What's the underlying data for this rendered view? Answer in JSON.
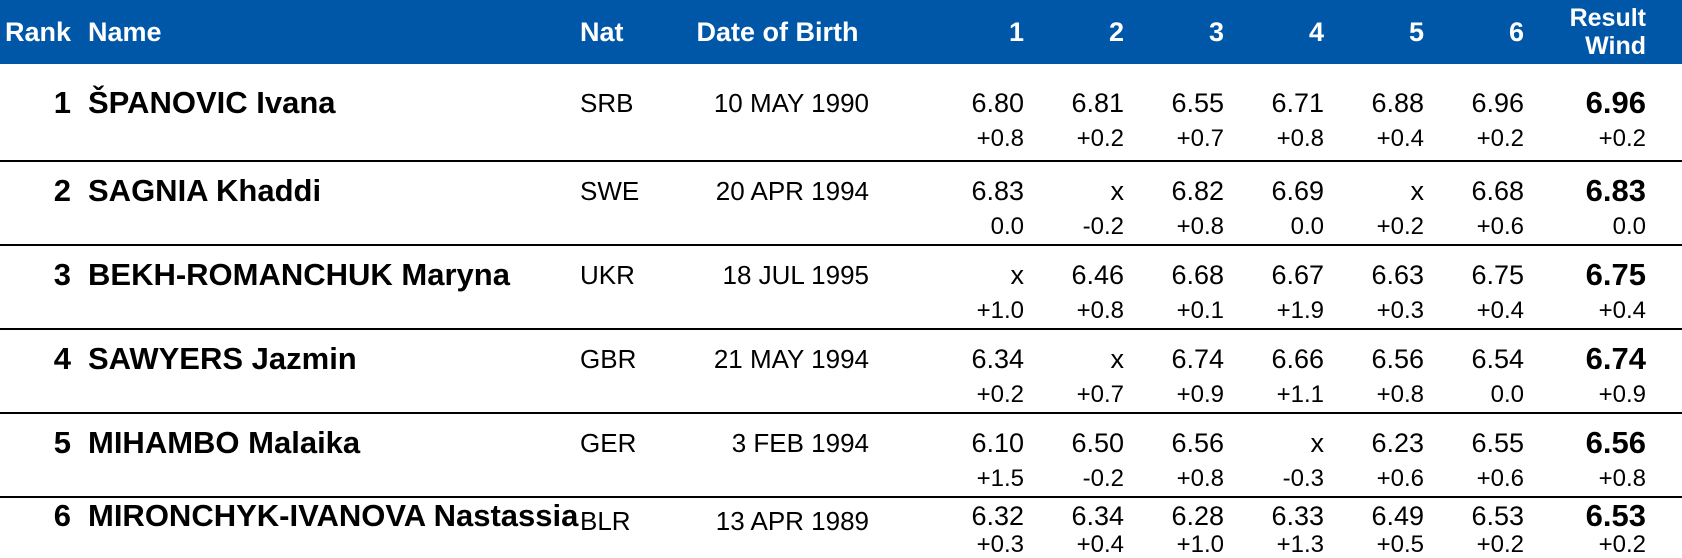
{
  "colors": {
    "header_bg": "#0057A8",
    "header_text": "#FFFFFF",
    "body_text": "#000000",
    "row_divider": "#000000"
  },
  "table": {
    "headers": {
      "rank": "Rank",
      "name": "Name",
      "nat": "Nat",
      "dob": "Date of Birth",
      "attempts": [
        "1",
        "2",
        "3",
        "4",
        "5",
        "6"
      ],
      "result_line1": "Result",
      "result_line2": "Wind"
    },
    "rows": [
      {
        "rank": "1",
        "name": "ŠPANOVIC Ivana",
        "nat": "SRB",
        "dob": "10 MAY 1990",
        "marks": [
          "6.80",
          "6.81",
          "6.55",
          "6.71",
          "6.88",
          "6.96"
        ],
        "winds": [
          "+0.8",
          "+0.2",
          "+0.7",
          "+0.8",
          "+0.4",
          "+0.2"
        ],
        "result": "6.96",
        "result_wind": "+0.2"
      },
      {
        "rank": "2",
        "name": "SAGNIA Khaddi",
        "nat": "SWE",
        "dob": "20 APR 1994",
        "marks": [
          "6.83",
          "x",
          "6.82",
          "6.69",
          "x",
          "6.68"
        ],
        "winds": [
          "0.0",
          "-0.2",
          "+0.8",
          "0.0",
          "+0.2",
          "+0.6"
        ],
        "result": "6.83",
        "result_wind": "0.0"
      },
      {
        "rank": "3",
        "name": "BEKH-ROMANCHUK Maryna",
        "nat": "UKR",
        "dob": "18 JUL 1995",
        "marks": [
          "x",
          "6.46",
          "6.68",
          "6.67",
          "6.63",
          "6.75"
        ],
        "winds": [
          "+1.0",
          "+0.8",
          "+0.1",
          "+1.9",
          "+0.3",
          "+0.4"
        ],
        "result": "6.75",
        "result_wind": "+0.4"
      },
      {
        "rank": "4",
        "name": "SAWYERS Jazmin",
        "nat": "GBR",
        "dob": "21 MAY 1994",
        "marks": [
          "6.34",
          "x",
          "6.74",
          "6.66",
          "6.56",
          "6.54"
        ],
        "winds": [
          "+0.2",
          "+0.7",
          "+0.9",
          "+1.1",
          "+0.8",
          "0.0"
        ],
        "result": "6.74",
        "result_wind": "+0.9"
      },
      {
        "rank": "5",
        "name": "MIHAMBO Malaika",
        "nat": "GER",
        "dob": "3 FEB 1994",
        "marks": [
          "6.10",
          "6.50",
          "6.56",
          "x",
          "6.23",
          "6.55"
        ],
        "winds": [
          "+1.5",
          "-0.2",
          "+0.8",
          "-0.3",
          "+0.6",
          "+0.6"
        ],
        "result": "6.56",
        "result_wind": "+0.8"
      },
      {
        "rank": "6",
        "name": "MIRONCHYK-IVANOVA Nastassia",
        "nat": "BLR",
        "dob": "13 APR 1989",
        "marks": [
          "6.32",
          "6.34",
          "6.28",
          "6.33",
          "6.49",
          "6.53"
        ],
        "winds": [
          "+0.3",
          "+0.4",
          "+1.0",
          "+1.3",
          "+0.5",
          "+0.2"
        ],
        "result": "6.53",
        "result_wind": "+0.2"
      }
    ]
  }
}
